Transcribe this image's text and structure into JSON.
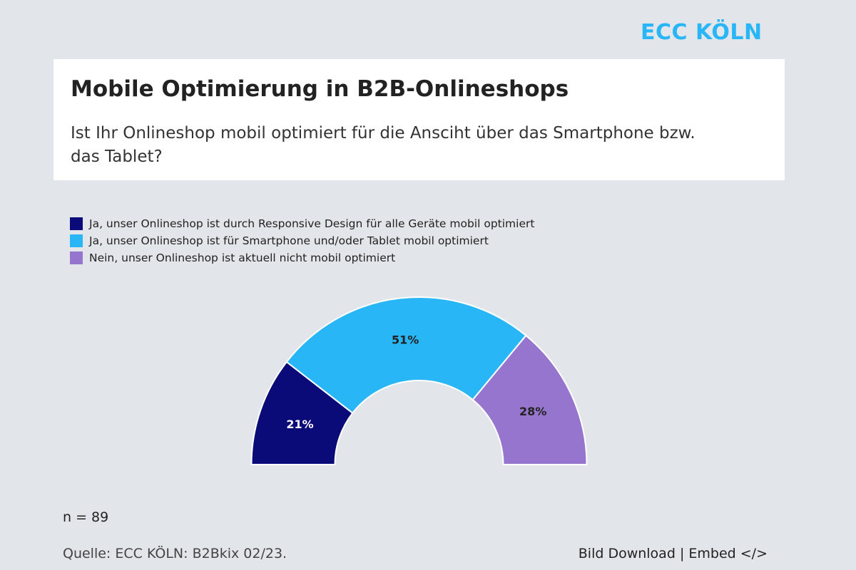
{
  "logo": "ECC KÖLN",
  "header": {
    "title": "Mobile Optimierung in B2B-Onlineshops",
    "subtitle": "Ist Ihr Onlineshop mobil optimiert für die Ansciht über das Smartphone bzw. das Tablet?"
  },
  "chart_data": {
    "type": "pie",
    "variant": "semi-donut",
    "legend_position": "top-left",
    "categories": [
      "Ja, unser Onlineshop ist durch Responsive Design für alle Geräte mobil optimiert",
      "Ja, unser Onlineshop ist für Smartphone und/oder Tablet mobil optimiert",
      "Nein, unser Onlineshop ist aktuell nicht mobil optimiert"
    ],
    "values": [
      21,
      51,
      28
    ],
    "labels": [
      "21%",
      "51%",
      "28%"
    ],
    "colors": [
      "#0a0a78",
      "#29b6f6",
      "#9575cd"
    ],
    "label_colors": [
      "#ffffff",
      "#222222",
      "#222222"
    ]
  },
  "footer": {
    "n": "n = 89",
    "source": "Quelle: ECC KÖLN: B2Bkix 02/23.",
    "download": "Bild Download",
    "separator": "|",
    "embed": "Embed </>"
  }
}
